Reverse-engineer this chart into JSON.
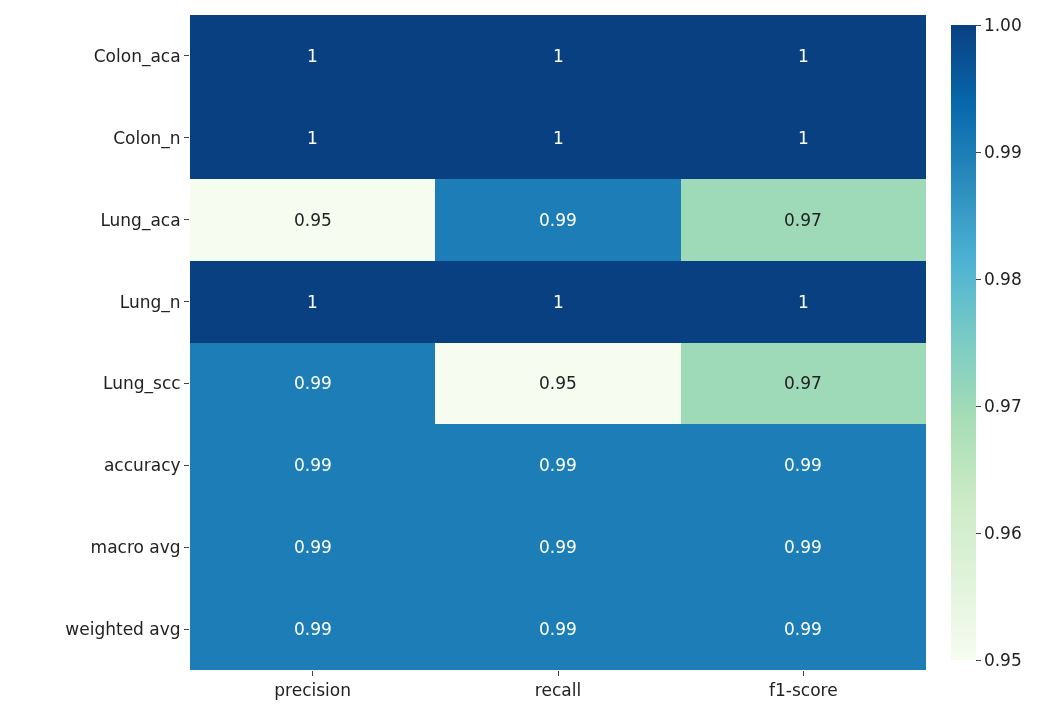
{
  "chart_data": {
    "type": "heatmap",
    "categories": [
      "precision",
      "recall",
      "f1-score"
    ],
    "y_categories": [
      "Colon_aca",
      "Colon_n",
      "Lung_aca",
      "Lung_n",
      "Lung_scc",
      "accuracy",
      "macro avg",
      "weighted avg"
    ],
    "cells": [
      [
        1,
        1,
        1
      ],
      [
        1,
        1,
        1
      ],
      [
        0.95,
        0.99,
        0.97
      ],
      [
        1,
        1,
        1
      ],
      [
        0.99,
        0.95,
        0.97
      ],
      [
        0.99,
        0.99,
        0.99
      ],
      [
        0.99,
        0.99,
        0.99
      ],
      [
        0.99,
        0.99,
        0.99
      ]
    ],
    "data_labels": true,
    "clim": [
      0.95,
      1.0
    ],
    "cticks": [
      0.95,
      0.96,
      0.97,
      0.98,
      0.99,
      {
        "value": 1.0,
        "label": "1.00"
      }
    ]
  }
}
